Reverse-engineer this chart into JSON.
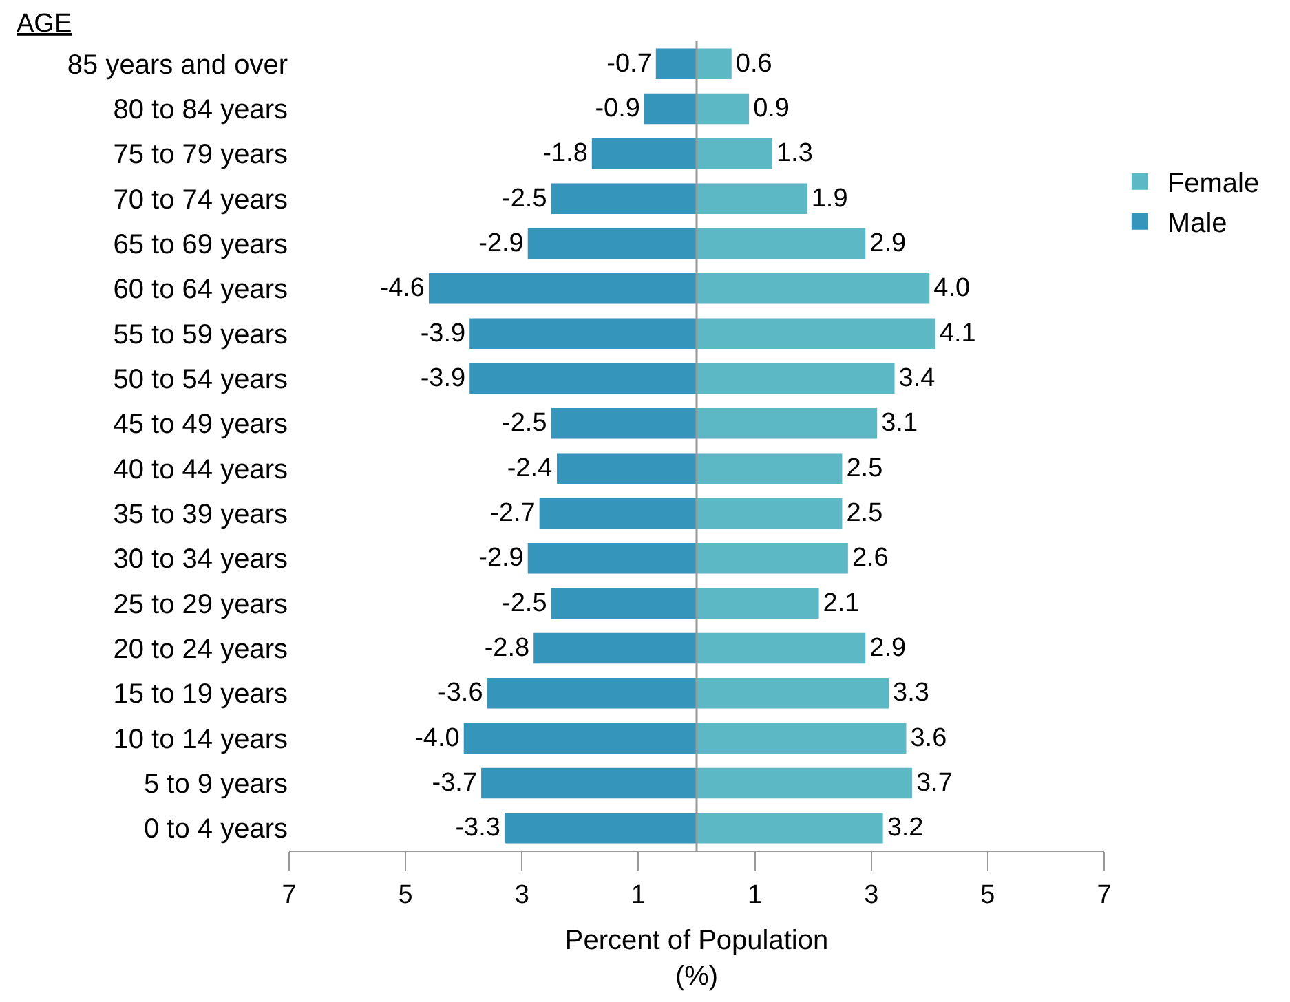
{
  "chart_data": {
    "type": "bar",
    "orientation": "horizontal",
    "ylabel": "AGE",
    "xlabel": "Percent of Population\n(%)",
    "stacked": true,
    "categories": [
      "85 years and over",
      "80 to 84 years",
      "75 to 79 years",
      "70 to 74 years",
      "65 to 69 years",
      "60 to 64 years",
      "55 to 59 years",
      "50 to 54 years",
      "45 to 49 years",
      "40 to 44 years",
      "35 to 39 years",
      "30 to 34 years",
      "25 to 29 years",
      "20 to 24 years",
      "15 to 19 years",
      "10 to 14 years",
      "5 to 9 years",
      "0 to 4 years"
    ],
    "series": [
      {
        "name": "Female",
        "color": "#5bb8c4",
        "values": [
          0.6,
          0.9,
          1.3,
          1.9,
          2.9,
          4.0,
          4.1,
          3.4,
          3.1,
          2.5,
          2.5,
          2.6,
          2.1,
          2.9,
          3.3,
          3.6,
          3.7,
          3.2
        ],
        "value_labels": [
          "0.6",
          "0.9",
          "1.3",
          "1.9",
          "2.9",
          "4.0",
          "4.1",
          "3.4",
          "3.1",
          "2.5",
          "2.5",
          "2.6",
          "2.1",
          "2.9",
          "3.3",
          "3.6",
          "3.7",
          "3.2"
        ]
      },
      {
        "name": "Male",
        "color": "#3595bb",
        "values": [
          -0.7,
          -0.9,
          -1.8,
          -2.5,
          -2.9,
          -4.6,
          -3.9,
          -3.9,
          -2.5,
          -2.4,
          -2.7,
          -2.9,
          -2.5,
          -2.8,
          -3.6,
          -4.0,
          -3.7,
          -3.3
        ],
        "value_labels": [
          "-0.7",
          "-0.9",
          "-1.8",
          "-2.5",
          "-2.9",
          "-4.6",
          "-3.9",
          "-3.9",
          "-2.5",
          "-2.4",
          "-2.7",
          "-2.9",
          "-2.5",
          "-2.8",
          "-3.6",
          "-4.0",
          "-3.7",
          "-3.3"
        ]
      }
    ],
    "xlim": [
      -7,
      7
    ],
    "xticks": [
      {
        "value": -7,
        "label": "7"
      },
      {
        "value": -5,
        "label": "5"
      },
      {
        "value": -3,
        "label": "3"
      },
      {
        "value": -1,
        "label": "1"
      },
      {
        "value": 1,
        "label": "1"
      },
      {
        "value": 3,
        "label": "3"
      },
      {
        "value": 5,
        "label": "5"
      },
      {
        "value": 7,
        "label": "7"
      }
    ],
    "legend": "right"
  }
}
